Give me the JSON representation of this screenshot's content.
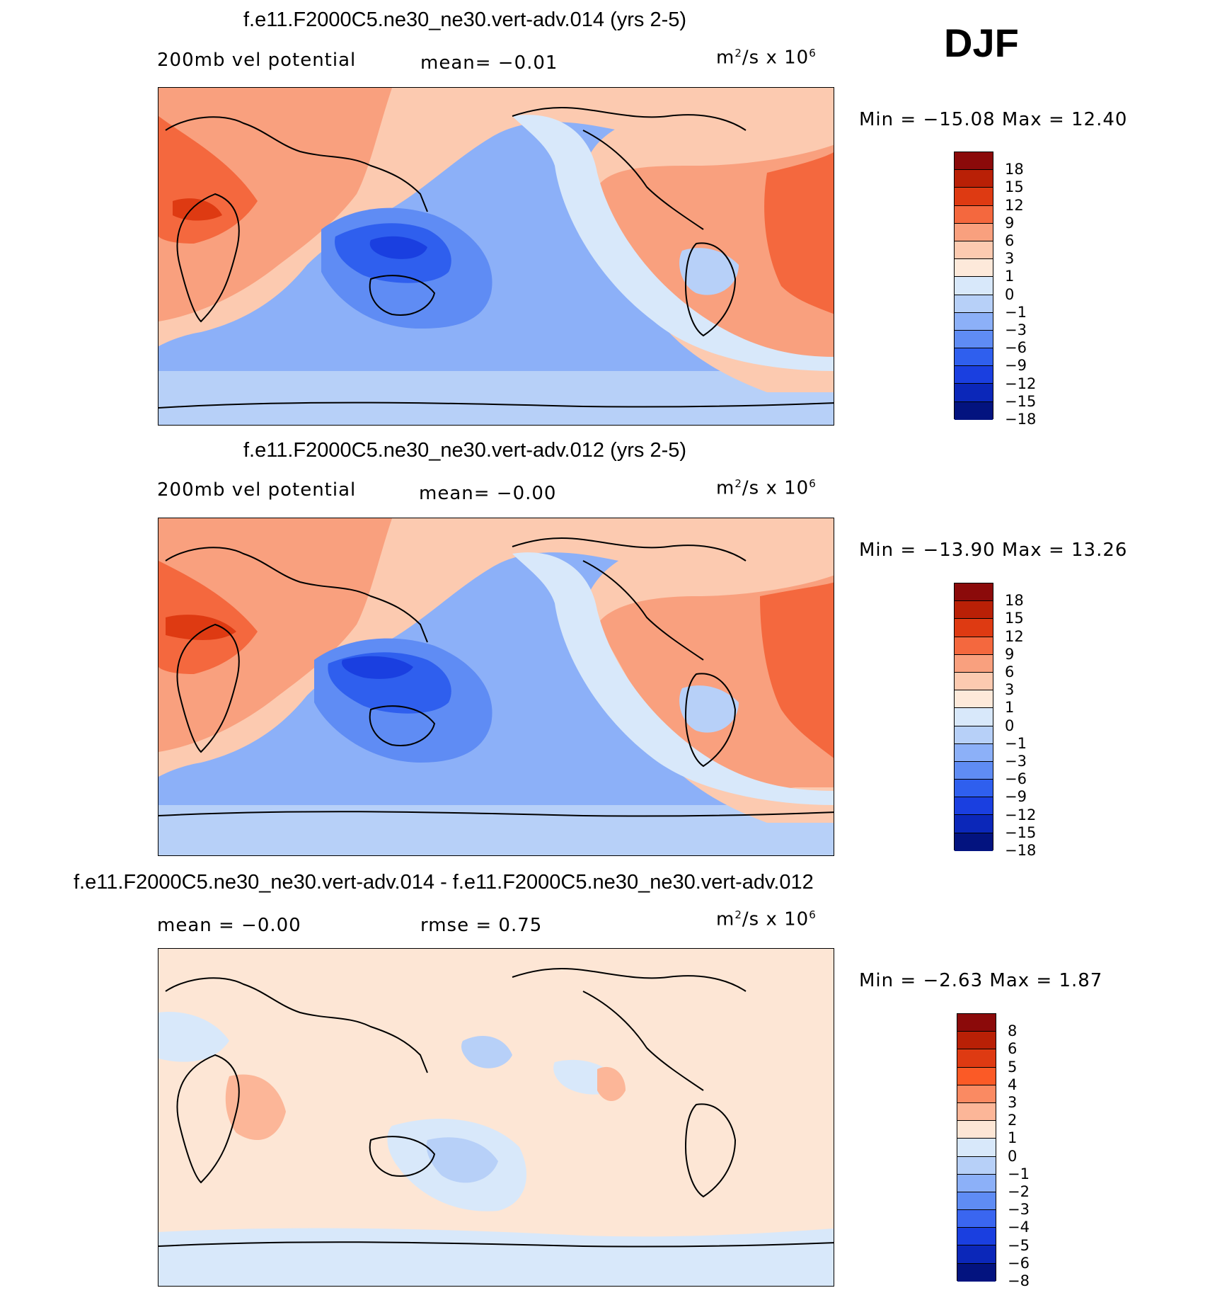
{
  "season": "DJF",
  "colors": {
    "ocean_negative": "#8cb0f8",
    "deep_negative": "#2f5fee",
    "positive": "#f9a07e",
    "strong_positive": "#f4683e",
    "near_zero_pos": "#fde5d6",
    "near_zero_neg": "#d7e8fb",
    "coast": "#000000"
  },
  "panels": [
    {
      "title": "f.e11.F2000C5.ne30_ne30.vert-adv.014 (yrs 2-5)",
      "left_text": "200mb  vel  potential",
      "mid_text": "mean=   −0.01",
      "units_base": "m",
      "units_exp": "2",
      "units_rest": "/s  x  10",
      "units_exp2": "6",
      "minmax": "Min  =  −15.08  Max  =    12.40",
      "legend_labels": [
        "18",
        "15",
        "12",
        "9",
        "6",
        "3",
        "1",
        "0",
        "−1",
        "−3",
        "−6",
        "−9",
        "−12",
        "−15",
        "−18"
      ],
      "legend_colors": [
        "#8b0a0a",
        "#b92006",
        "#de3a12",
        "#f4683e",
        "#f9a07e",
        "#fccab0",
        "#fde9da",
        "#d8e8fa",
        "#b7d0f8",
        "#8cb0f8",
        "#5f8cf4",
        "#2f5fee",
        "#1a3fe0",
        "#0b27b9",
        "#03137f"
      ]
    },
    {
      "title": "f.e11.F2000C5.ne30_ne30.vert-adv.012 (yrs 2-5)",
      "left_text": "200mb  vel  potential",
      "mid_text": "mean=   −0.00",
      "units_base": "m",
      "units_exp": "2",
      "units_rest": "/s  x  10",
      "units_exp2": "6",
      "minmax": "Min  =  −13.90  Max  =    13.26",
      "legend_labels": [
        "18",
        "15",
        "12",
        "9",
        "6",
        "3",
        "1",
        "0",
        "−1",
        "−3",
        "−6",
        "−9",
        "−12",
        "−15",
        "−18"
      ],
      "legend_colors": [
        "#8b0a0a",
        "#b92006",
        "#de3a12",
        "#f4683e",
        "#f9a07e",
        "#fccab0",
        "#fde9da",
        "#d8e8fa",
        "#b7d0f8",
        "#8cb0f8",
        "#5f8cf4",
        "#2f5fee",
        "#1a3fe0",
        "#0b27b9",
        "#03137f"
      ]
    },
    {
      "title": "f.e11.F2000C5.ne30_ne30.vert-adv.014 - f.e11.F2000C5.ne30_ne30.vert-adv.012",
      "left_text": "mean  =    −0.00",
      "mid_text": "rmse  =     0.75",
      "units_base": "m",
      "units_exp": "2",
      "units_rest": "/s  x  10",
      "units_exp2": "6",
      "minmax": "Min  =    −2.63  Max  =     1.87",
      "legend_labels": [
        "8",
        "6",
        "5",
        "4",
        "3",
        "2",
        "1",
        "0",
        "−1",
        "−2",
        "−3",
        "−4",
        "−5",
        "−6",
        "−8"
      ],
      "legend_colors": [
        "#8b0a0a",
        "#b92006",
        "#de3a12",
        "#fb5a26",
        "#fa8a62",
        "#fcb698",
        "#fde6d5",
        "#d8e8fa",
        "#b7d0f8",
        "#8cb0f8",
        "#5f8cf4",
        "#3a66f0",
        "#1a3fe0",
        "#0b27b9",
        "#03137f"
      ]
    }
  ]
}
